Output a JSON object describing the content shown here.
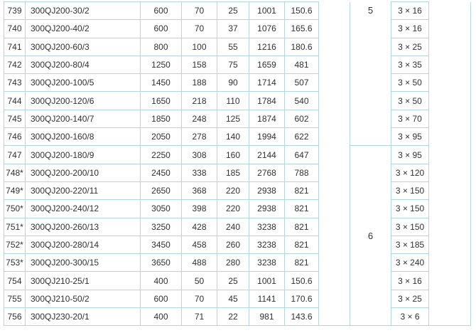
{
  "colors": {
    "border": "#b2d8db",
    "text": "#303030",
    "background": "#ffffff"
  },
  "table": {
    "description": "pump-specification-table-fragment",
    "power_groups": [
      {
        "label": "5",
        "row_span": 8
      },
      {
        "label": "6",
        "row_span": 10
      }
    ],
    "rows": [
      {
        "no": "739",
        "model": "300QJ200-30/2",
        "values": [
          "600",
          "70",
          "25",
          "1001",
          "150.6"
        ],
        "cable": "3 × 16"
      },
      {
        "no": "740",
        "model": "300QJ200-40/2",
        "values": [
          "600",
          "70",
          "37",
          "1076",
          "165.6"
        ],
        "cable": "3 × 16"
      },
      {
        "no": "741",
        "model": "300QJ200-60/3",
        "values": [
          "800",
          "100",
          "55",
          "1216",
          "180.6"
        ],
        "cable": "3 × 25"
      },
      {
        "no": "742",
        "model": "300QJ200-80/4",
        "values": [
          "1250",
          "158",
          "75",
          "1659",
          "481"
        ],
        "cable": "3 × 35"
      },
      {
        "no": "743",
        "model": "300QJ200-100/5",
        "values": [
          "1450",
          "188",
          "90",
          "1714",
          "507"
        ],
        "cable": "3 × 50"
      },
      {
        "no": "744",
        "model": "300QJ200-120/6",
        "values": [
          "1650",
          "218",
          "110",
          "1784",
          "540"
        ],
        "cable": "3 × 50"
      },
      {
        "no": "745",
        "model": "300QJ200-140/7",
        "values": [
          "1850",
          "248",
          "125",
          "1874",
          "602"
        ],
        "cable": "3 × 70"
      },
      {
        "no": "746",
        "model": "300QJ200-160/8",
        "values": [
          "2050",
          "278",
          "140",
          "1994",
          "622"
        ],
        "cable": "3 × 95"
      },
      {
        "no": "747",
        "model": "300QJ200-180/9",
        "values": [
          "2250",
          "308",
          "160",
          "2144",
          "647"
        ],
        "cable": "3 × 95"
      },
      {
        "no": "748*",
        "model": "300QJ200-200/10",
        "values": [
          "2450",
          "338",
          "185",
          "2768",
          "788"
        ],
        "cable": "3 × 120"
      },
      {
        "no": "749*",
        "model": "300QJ200-220/11",
        "values": [
          "2650",
          "368",
          "220",
          "2938",
          "821"
        ],
        "cable": "3 × 150"
      },
      {
        "no": "750*",
        "model": "300QJ200-240/12",
        "values": [
          "3050",
          "398",
          "220",
          "2938",
          "821"
        ],
        "cable": "3 × 150"
      },
      {
        "no": "751*",
        "model": "300QJ200-260/13",
        "values": [
          "3250",
          "428",
          "240",
          "3238",
          "821"
        ],
        "cable": "3 × 150"
      },
      {
        "no": "752*",
        "model": "300QJ200-280/14",
        "values": [
          "3450",
          "458",
          "260",
          "3238",
          "821"
        ],
        "cable": "3 × 185"
      },
      {
        "no": "753*",
        "model": "300QJ200-300/15",
        "values": [
          "3650",
          "488",
          "280",
          "3238",
          "821"
        ],
        "cable": "3 × 240"
      },
      {
        "no": "754",
        "model": "300QJ210-25/1",
        "values": [
          "400",
          "50",
          "25",
          "1001",
          "150.6"
        ],
        "cable": "3 × 16"
      },
      {
        "no": "755",
        "model": "300QJ210-50/2",
        "values": [
          "600",
          "70",
          "45",
          "1141",
          "170.6"
        ],
        "cable": "3 × 25"
      },
      {
        "no": "756",
        "model": "300QJ230-20/1",
        "values": [
          "400",
          "71",
          "22",
          "981",
          "143.6"
        ],
        "cable": "3 × 6"
      }
    ]
  }
}
